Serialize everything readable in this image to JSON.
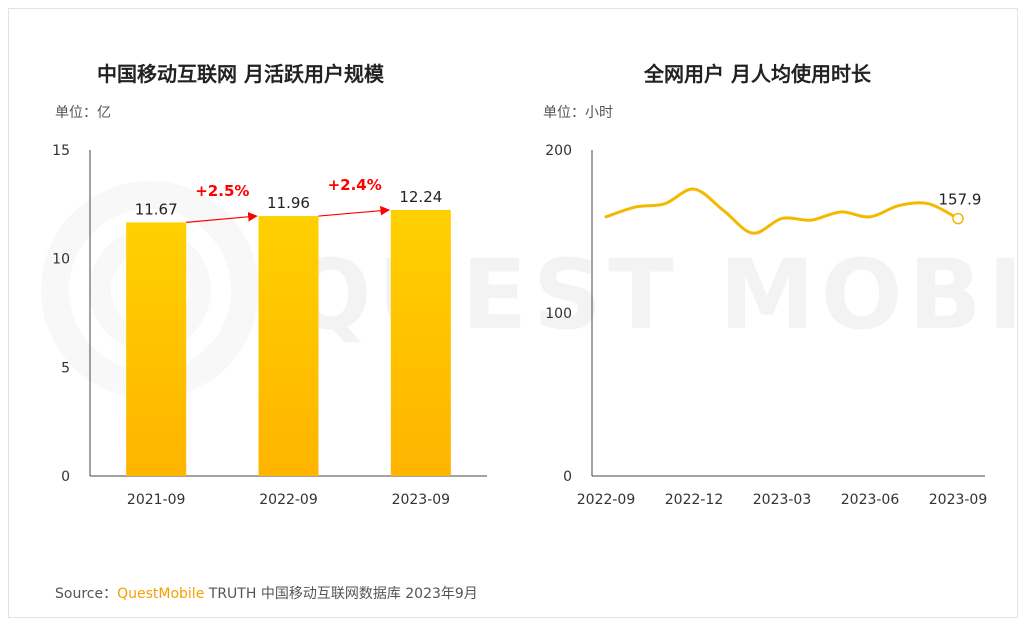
{
  "left_chart": {
    "title": "中国移动互联网 月活跃用户规模",
    "unit": "单位：亿"
  },
  "right_chart": {
    "title": "全网用户 月人均使用时长",
    "unit": "单位：小时"
  },
  "watermark": "QUEST MOBILE",
  "source": {
    "prefix": "Source：",
    "brand": "QuestMobile",
    "rest": " TRUTH 中国移动互联网数据库 2023年9月"
  },
  "colors": {
    "bar": "#ffc600",
    "line": "#f5b800",
    "growth": "#ff0000"
  },
  "chart_data": [
    {
      "type": "bar",
      "title": "中国移动互联网 月活跃用户规模",
      "categories": [
        "2021-09",
        "2022-09",
        "2023-09"
      ],
      "values": [
        11.67,
        11.96,
        12.24
      ],
      "data_labels": [
        "11.67",
        "11.96",
        "12.24"
      ],
      "growth_labels": [
        "+2.5%",
        "+2.4%"
      ],
      "ylim": [
        0,
        15
      ],
      "yticks": [
        0,
        5,
        10,
        15
      ],
      "ylabel": "单位：亿",
      "grid": false
    },
    {
      "type": "line",
      "title": "全网用户 月人均使用时长",
      "x": [
        "2022-09",
        "2022-10",
        "2022-11",
        "2022-12",
        "2023-01",
        "2023-02",
        "2023-03",
        "2023-04",
        "2023-05",
        "2023-06",
        "2023-07",
        "2023-08",
        "2023-09"
      ],
      "xticks": [
        "2022-09",
        "2022-12",
        "2023-03",
        "2023-06",
        "2023-09"
      ],
      "values": [
        159,
        165,
        167,
        176,
        163,
        149,
        158,
        157,
        162,
        159,
        166,
        167,
        157.9
      ],
      "end_label": "157.9",
      "ylim": [
        0,
        200
      ],
      "yticks": [
        0,
        100,
        200
      ],
      "ylabel": "单位：小时",
      "grid": false
    }
  ]
}
